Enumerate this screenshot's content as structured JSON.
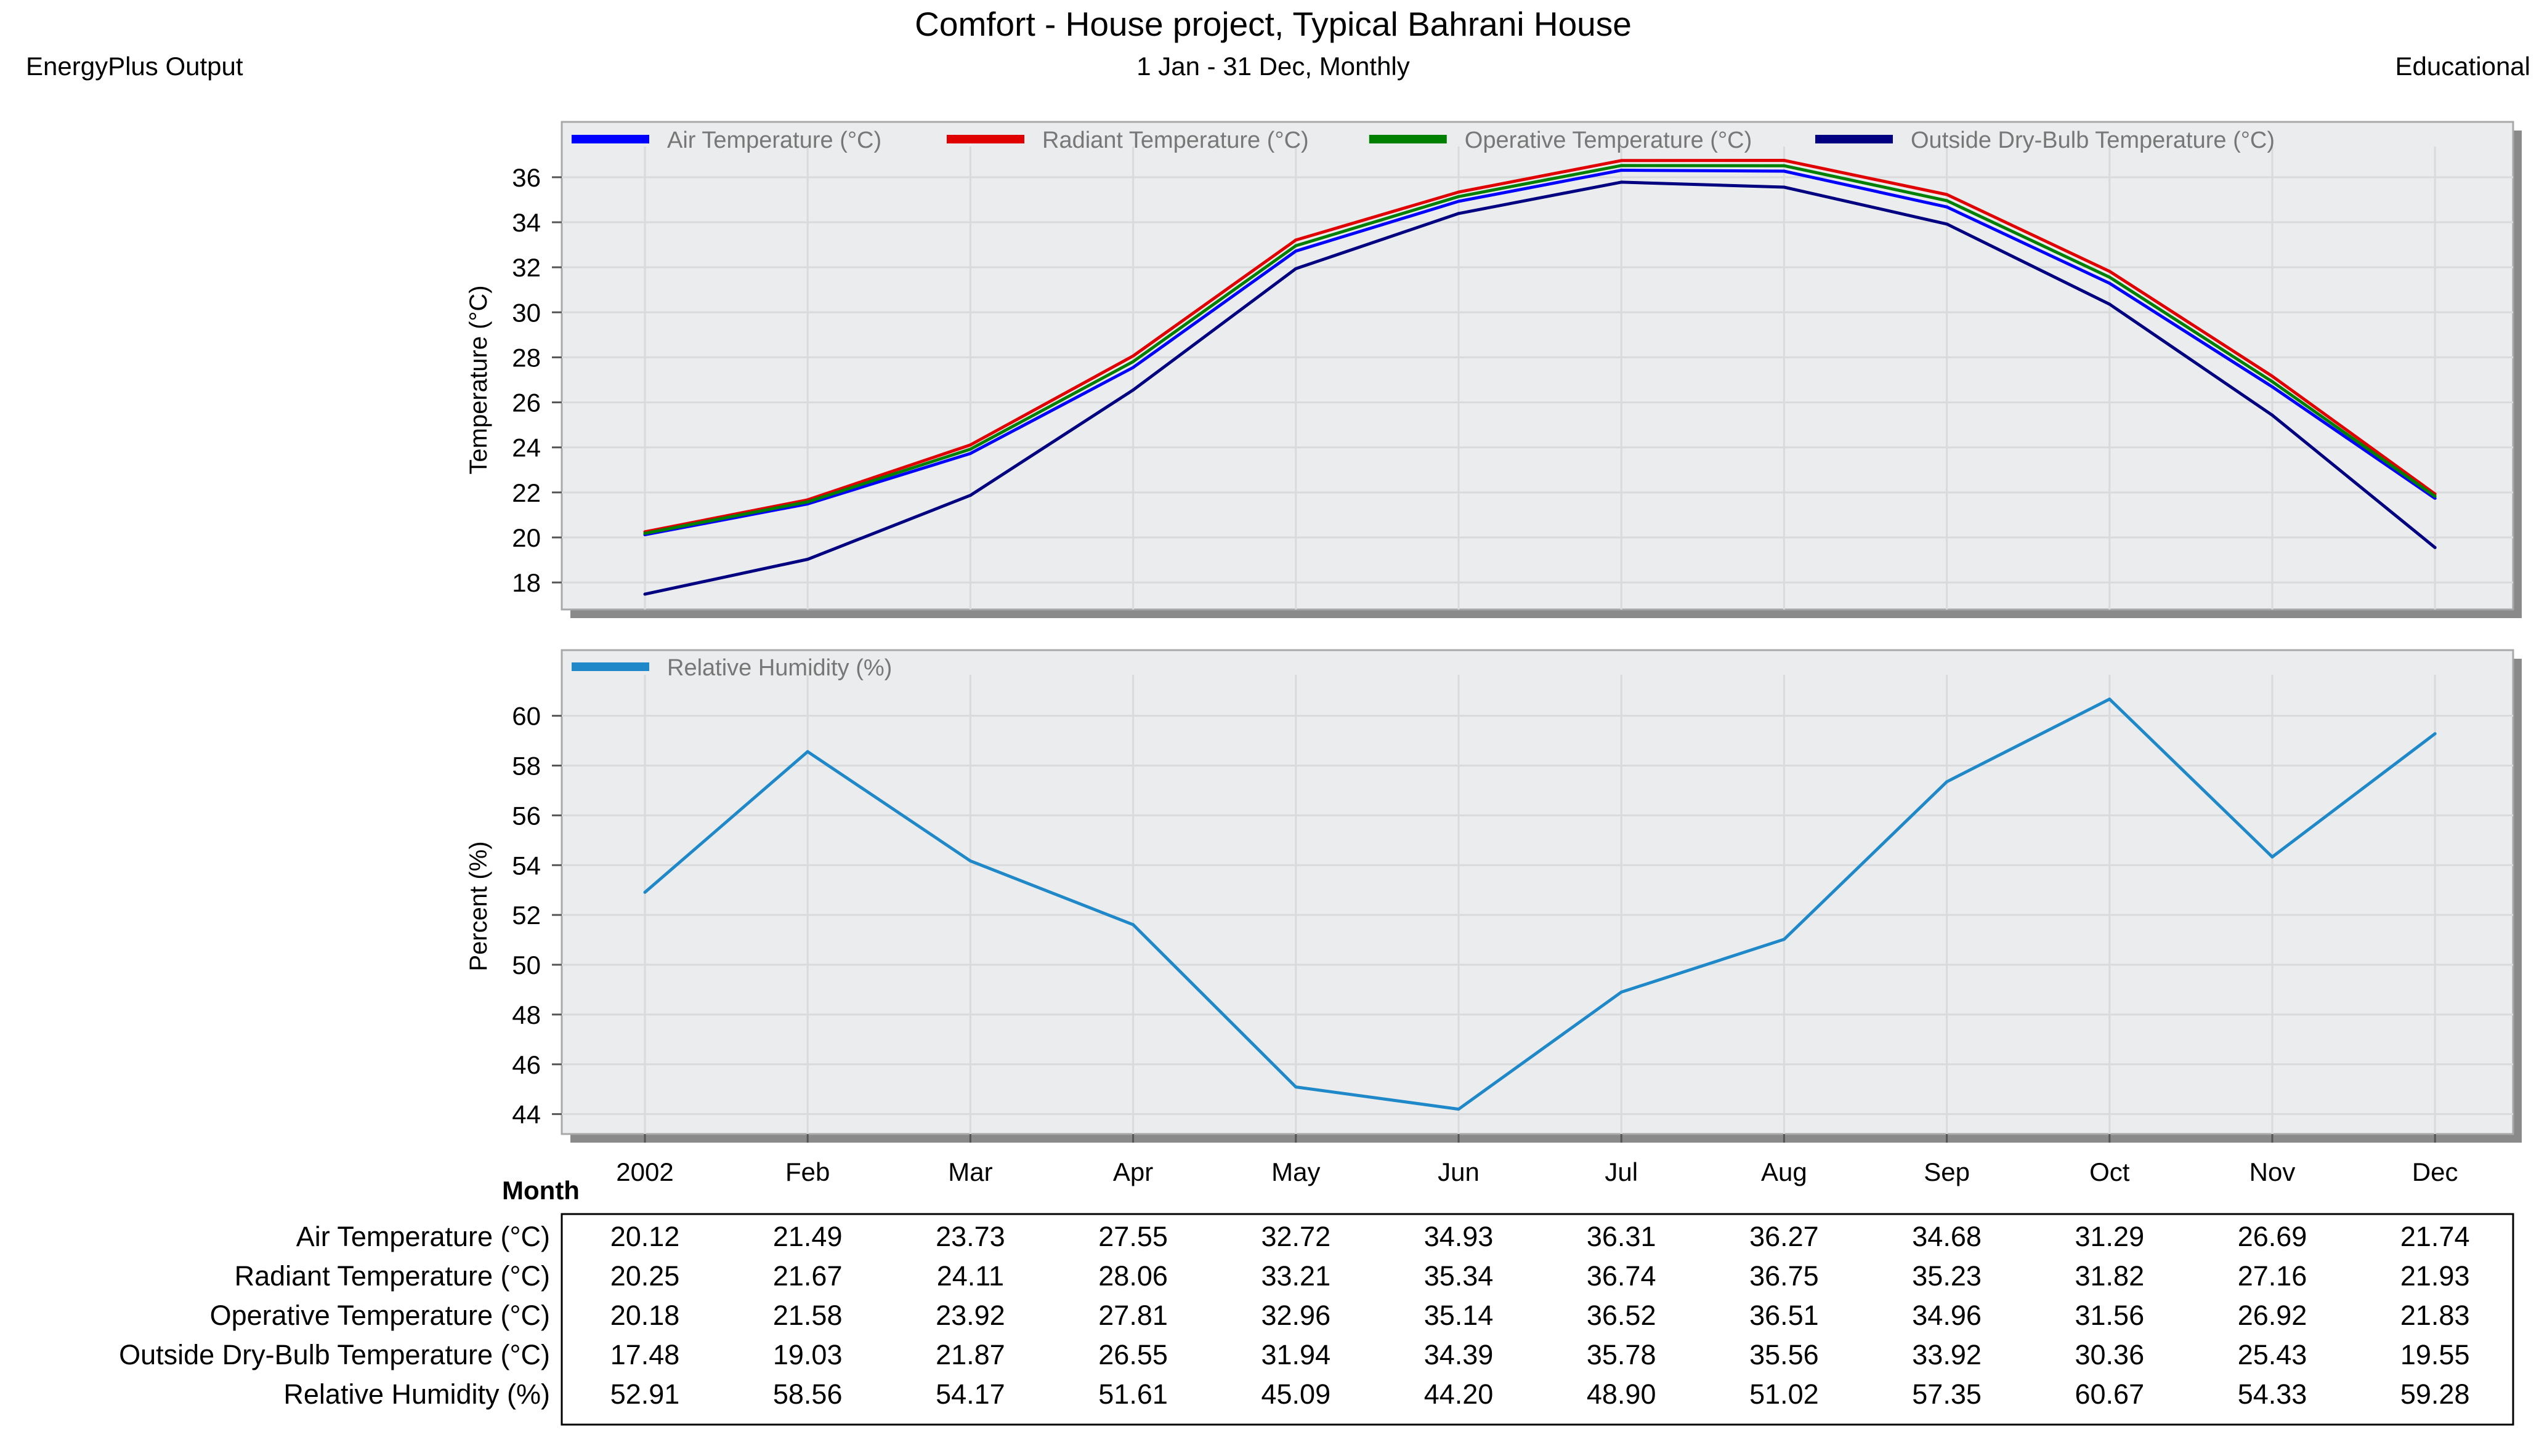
{
  "header": {
    "title": "Comfort - House project, Typical Bahrani House",
    "subtitle": "1 Jan - 31 Dec, Monthly",
    "left_label": "EnergyPlus Output",
    "right_label": "Educational"
  },
  "chart_data": [
    {
      "type": "line",
      "ylabel": "Temperature (°C)",
      "ylim": [
        16.8,
        37.2
      ],
      "yticks": [
        18,
        20,
        22,
        24,
        26,
        28,
        30,
        32,
        34,
        36
      ],
      "grid": true,
      "legend_position": "top",
      "categories": [
        "2002",
        "Feb",
        "Mar",
        "Apr",
        "May",
        "Jun",
        "Jul",
        "Aug",
        "Sep",
        "Oct",
        "Nov",
        "Dec"
      ],
      "series": [
        {
          "name": "Air Temperature (°C)",
          "color": "#0000ff",
          "values": [
            20.12,
            21.49,
            23.73,
            27.55,
            32.72,
            34.93,
            36.31,
            36.27,
            34.68,
            31.29,
            26.69,
            21.74
          ]
        },
        {
          "name": "Radiant Temperature (°C)",
          "color": "#e00000",
          "values": [
            20.25,
            21.67,
            24.11,
            28.06,
            33.21,
            35.34,
            36.74,
            36.75,
            35.23,
            31.82,
            27.16,
            21.93
          ]
        },
        {
          "name": "Operative Temperature (°C)",
          "color": "#008000",
          "values": [
            20.18,
            21.58,
            23.92,
            27.81,
            32.96,
            35.14,
            36.52,
            36.51,
            34.96,
            31.56,
            26.92,
            21.83
          ]
        },
        {
          "name": "Outside Dry-Bulb Temperature (°C)",
          "color": "#000080",
          "values": [
            17.48,
            19.03,
            21.87,
            26.55,
            31.94,
            34.39,
            35.78,
            35.56,
            33.92,
            30.36,
            25.43,
            19.55
          ]
        }
      ]
    },
    {
      "type": "line",
      "ylabel": "Percent (%)",
      "ylim": [
        43.2,
        61.5
      ],
      "yticks": [
        44,
        46,
        48,
        50,
        52,
        54,
        56,
        58,
        60
      ],
      "grid": true,
      "legend_position": "top",
      "xlabel": "Month",
      "categories": [
        "2002",
        "Feb",
        "Mar",
        "Apr",
        "May",
        "Jun",
        "Jul",
        "Aug",
        "Sep",
        "Oct",
        "Nov",
        "Dec"
      ],
      "series": [
        {
          "name": "Relative Humidity (%)",
          "color": "#1e88c8",
          "values": [
            52.91,
            58.56,
            54.17,
            51.61,
            45.09,
            44.2,
            48.9,
            51.02,
            57.35,
            60.67,
            54.33,
            59.28
          ]
        }
      ]
    }
  ],
  "table": {
    "rows": [
      {
        "label": "Air Temperature (°C)",
        "values": [
          "20.12",
          "21.49",
          "23.73",
          "27.55",
          "32.72",
          "34.93",
          "36.31",
          "36.27",
          "34.68",
          "31.29",
          "26.69",
          "21.74"
        ]
      },
      {
        "label": "Radiant Temperature (°C)",
        "values": [
          "20.25",
          "21.67",
          "24.11",
          "28.06",
          "33.21",
          "35.34",
          "36.74",
          "36.75",
          "35.23",
          "31.82",
          "27.16",
          "21.93"
        ]
      },
      {
        "label": "Operative Temperature (°C)",
        "values": [
          "20.18",
          "21.58",
          "23.92",
          "27.81",
          "32.96",
          "35.14",
          "36.52",
          "36.51",
          "34.96",
          "31.56",
          "26.92",
          "21.83"
        ]
      },
      {
        "label": "Outside Dry-Bulb Temperature (°C)",
        "values": [
          "17.48",
          "19.03",
          "21.87",
          "26.55",
          "31.94",
          "34.39",
          "35.78",
          "35.56",
          "33.92",
          "30.36",
          "25.43",
          "19.55"
        ]
      },
      {
        "label": "Relative Humidity (%)",
        "values": [
          "52.91",
          "58.56",
          "54.17",
          "51.61",
          "45.09",
          "44.20",
          "48.90",
          "51.02",
          "57.35",
          "60.67",
          "54.33",
          "59.28"
        ]
      }
    ]
  }
}
